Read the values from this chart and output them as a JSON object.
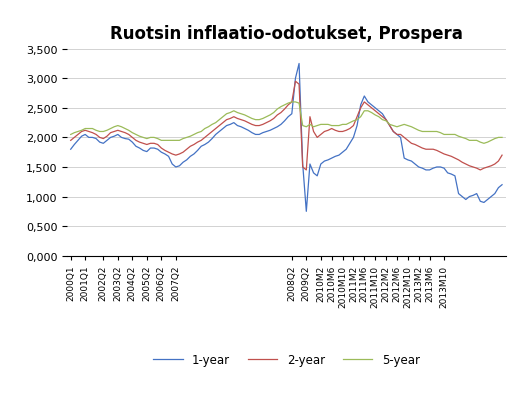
{
  "title": "Ruotsin inflaatio-odotukset, Prospera",
  "ylim": [
    0,
    3.5
  ],
  "yticks": [
    0.0,
    0.5,
    1.0,
    1.5,
    2.0,
    2.5,
    3.0,
    3.5
  ],
  "line_colors": {
    "1-year": "#4472C4",
    "2-year": "#C0504D",
    "5-year": "#9BBB59"
  },
  "labels": [
    "1-year",
    "2-year",
    "5-year"
  ],
  "data": {
    "1-year": [
      1.8,
      1.88,
      1.95,
      2.02,
      2.05,
      2.0,
      2.0,
      1.98,
      1.92,
      1.9,
      1.95,
      2.0,
      2.02,
      2.05,
      2.0,
      1.98,
      1.97,
      1.92,
      1.85,
      1.82,
      1.78,
      1.76,
      1.82,
      1.82,
      1.8,
      1.75,
      1.72,
      1.68,
      1.55,
      1.5,
      1.52,
      1.58,
      1.62,
      1.68,
      1.72,
      1.78,
      1.85,
      1.88,
      1.92,
      1.98,
      2.05,
      2.1,
      2.15,
      2.2,
      2.22,
      2.25,
      2.2,
      2.18,
      2.15,
      2.12,
      2.08,
      2.05,
      2.05,
      2.08,
      2.1,
      2.12,
      2.15,
      2.18,
      2.22,
      2.28,
      2.35,
      2.4,
      3.0,
      3.25,
      1.55,
      0.75,
      1.55,
      1.4,
      1.35,
      1.55,
      1.6,
      1.62,
      1.65,
      1.68,
      1.7,
      1.75,
      1.8,
      1.9,
      2.0,
      2.2,
      2.55,
      2.7,
      2.6,
      2.55,
      2.5,
      2.45,
      2.4,
      2.3,
      2.2,
      2.1,
      2.05,
      2.0,
      1.65,
      1.62,
      1.6,
      1.55,
      1.5,
      1.48,
      1.45,
      1.45,
      1.48,
      1.5,
      1.5,
      1.48,
      1.4,
      1.38,
      1.35,
      1.05,
      1.0,
      0.95,
      1.0,
      1.02,
      1.05,
      0.92,
      0.9,
      0.95,
      1.0,
      1.05,
      1.15,
      1.2
    ],
    "2-year": [
      1.95,
      2.0,
      2.05,
      2.1,
      2.12,
      2.1,
      2.08,
      2.05,
      2.0,
      1.98,
      2.02,
      2.08,
      2.1,
      2.12,
      2.1,
      2.08,
      2.05,
      2.0,
      1.95,
      1.92,
      1.9,
      1.88,
      1.9,
      1.9,
      1.88,
      1.82,
      1.78,
      1.75,
      1.72,
      1.7,
      1.72,
      1.75,
      1.8,
      1.85,
      1.88,
      1.92,
      1.95,
      2.0,
      2.05,
      2.1,
      2.15,
      2.2,
      2.25,
      2.3,
      2.32,
      2.35,
      2.32,
      2.3,
      2.28,
      2.25,
      2.22,
      2.2,
      2.2,
      2.22,
      2.25,
      2.28,
      2.32,
      2.38,
      2.42,
      2.48,
      2.55,
      2.6,
      2.95,
      2.9,
      1.5,
      1.45,
      2.35,
      2.1,
      2.0,
      2.05,
      2.1,
      2.12,
      2.15,
      2.12,
      2.1,
      2.1,
      2.12,
      2.15,
      2.2,
      2.35,
      2.5,
      2.6,
      2.55,
      2.5,
      2.45,
      2.4,
      2.35,
      2.3,
      2.2,
      2.1,
      2.05,
      2.05,
      2.0,
      1.95,
      1.9,
      1.88,
      1.85,
      1.82,
      1.8,
      1.8,
      1.8,
      1.78,
      1.75,
      1.72,
      1.7,
      1.68,
      1.65,
      1.62,
      1.58,
      1.55,
      1.52,
      1.5,
      1.48,
      1.45,
      1.48,
      1.5,
      1.52,
      1.55,
      1.6,
      1.7
    ],
    "5-year": [
      2.05,
      2.08,
      2.1,
      2.12,
      2.15,
      2.15,
      2.15,
      2.12,
      2.1,
      2.1,
      2.12,
      2.15,
      2.18,
      2.2,
      2.18,
      2.15,
      2.12,
      2.08,
      2.05,
      2.02,
      2.0,
      1.98,
      2.0,
      2.0,
      1.98,
      1.95,
      1.95,
      1.95,
      1.95,
      1.95,
      1.95,
      1.98,
      2.0,
      2.02,
      2.05,
      2.08,
      2.1,
      2.15,
      2.18,
      2.22,
      2.25,
      2.3,
      2.35,
      2.4,
      2.42,
      2.45,
      2.42,
      2.4,
      2.38,
      2.35,
      2.32,
      2.3,
      2.3,
      2.32,
      2.35,
      2.38,
      2.42,
      2.48,
      2.52,
      2.55,
      2.58,
      2.6,
      2.6,
      2.58,
      2.2,
      2.18,
      2.22,
      2.18,
      2.2,
      2.22,
      2.22,
      2.22,
      2.2,
      2.2,
      2.2,
      2.22,
      2.22,
      2.25,
      2.28,
      2.3,
      2.35,
      2.45,
      2.45,
      2.42,
      2.38,
      2.35,
      2.3,
      2.28,
      2.22,
      2.2,
      2.18,
      2.2,
      2.22,
      2.2,
      2.18,
      2.15,
      2.12,
      2.1,
      2.1,
      2.1,
      2.1,
      2.1,
      2.08,
      2.05,
      2.05,
      2.05,
      2.05,
      2.02,
      2.0,
      1.98,
      1.95,
      1.95,
      1.95,
      1.92,
      1.9,
      1.92,
      1.95,
      1.98,
      2.0,
      2.0
    ]
  },
  "xtick_labels": [
    "2000Q1",
    "2001Q1",
    "2002Q2",
    "2003Q2",
    "2004Q2",
    "2005Q2",
    "2006Q2",
    "2007Q2",
    "2008Q2",
    "2009Q2",
    "2010M2",
    "2010M6",
    "2010M10",
    "2011M2",
    "2011M6",
    "2011M10",
    "2012M2",
    "2012M6",
    "2012M10",
    "2013M2",
    "2013M6",
    "2013M10"
  ],
  "xtick_positions": [
    0,
    4,
    9,
    13,
    17,
    21,
    25,
    29,
    61,
    65,
    69,
    72,
    75,
    78,
    81,
    84,
    87,
    90,
    93,
    96,
    99,
    103
  ]
}
